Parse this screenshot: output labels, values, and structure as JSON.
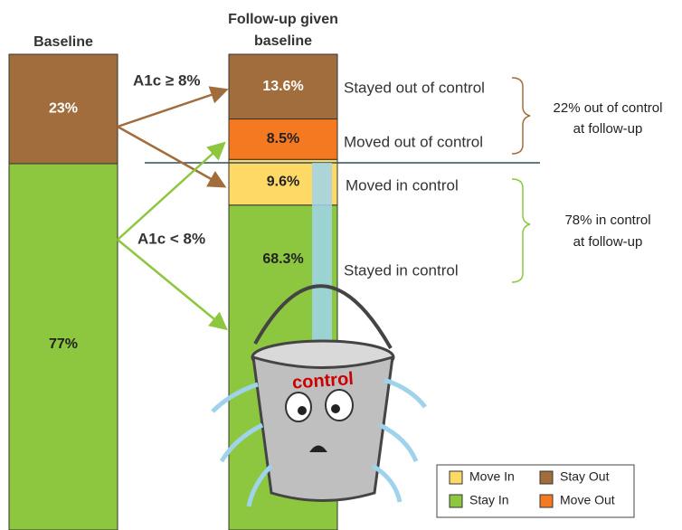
{
  "chart_data": {
    "type": "stacked_bar",
    "categories": [
      "Baseline",
      "Follow-up given baseline"
    ],
    "series": [
      {
        "name": "Stay In",
        "color": "#8dc63f",
        "values": [
          77,
          68.3
        ],
        "value_labels": [
          "77%",
          "68.3%"
        ]
      },
      {
        "name": "Move In",
        "color": "#ffd966",
        "values": [
          null,
          9.6
        ],
        "value_labels": [
          null,
          "9.6%"
        ]
      },
      {
        "name": "Move Out",
        "color": "#f47920",
        "values": [
          null,
          8.5
        ],
        "value_labels": [
          null,
          "8.5%"
        ]
      },
      {
        "name": "Stay Out",
        "color": "#a26d3c",
        "values": [
          23,
          13.6
        ],
        "value_labels": [
          "23%",
          "13.6%"
        ]
      }
    ],
    "ylim": [
      0,
      100
    ],
    "annotations": {
      "arrow_high": "A1c ≥ 8%",
      "arrow_low": "A1c < 8%",
      "segments": [
        "Stayed in control",
        "Moved in control",
        "Moved out of control",
        "Stayed out of control"
      ],
      "brace_out": [
        "22% out of control",
        "at follow-up"
      ],
      "brace_in": [
        "78% in control",
        "at follow-up"
      ],
      "bucket": "control"
    }
  }
}
